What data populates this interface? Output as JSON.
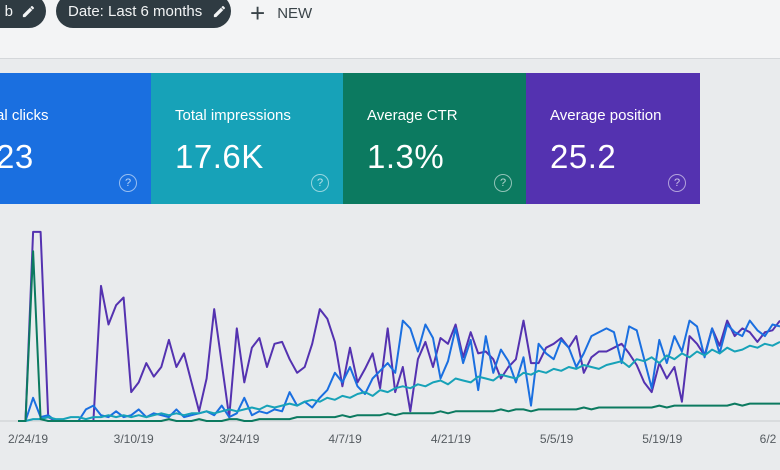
{
  "toolbar": {
    "chip_a_label": "b",
    "date_chip_label": "Date: Last 6 months",
    "new_label": "NEW",
    "plus": "+"
  },
  "cards": [
    {
      "label": "al clicks",
      "value": "23",
      "help": "?",
      "color": "#1a6fe0"
    },
    {
      "label": "Total impressions",
      "value": "17.6K",
      "help": "?",
      "color": "#17a2b8"
    },
    {
      "label": "Average CTR",
      "value": "1.3%",
      "help": "?",
      "color": "#0c7a60"
    },
    {
      "label": "Average position",
      "value": "25.2",
      "help": "?",
      "color": "#5432b0"
    }
  ],
  "chart_data": {
    "type": "line",
    "x_tick_labels": [
      "2/24/19",
      "3/10/19",
      "3/24/19",
      "4/7/19",
      "4/21/19",
      "5/5/19",
      "5/19/19",
      "6/2"
    ],
    "series": [
      {
        "color": "#5432b0",
        "values": [
          0,
          0,
          0.98,
          0.98,
          0.02,
          0,
          0,
          0,
          0,
          0,
          0,
          0.7,
          0.5,
          0.6,
          0.64,
          0.15,
          0.2,
          0.3,
          0.23,
          0.28,
          0.42,
          0.28,
          0.35,
          0.2,
          0.05,
          0.22,
          0.58,
          0.3,
          0.02,
          0.48,
          0.2,
          0.38,
          0.43,
          0.28,
          0.4,
          0.41,
          0.32,
          0.25,
          0.28,
          0.4,
          0.58,
          0.53,
          0.41,
          0.18,
          0.38,
          0.2,
          0.27,
          0.35,
          0.17,
          0.48,
          0.15,
          0.28,
          0.05,
          0.32,
          0.41,
          0.28,
          0.43,
          0.4,
          0.5,
          0.33,
          0.46,
          0.35,
          0.36,
          0.32,
          0.22,
          0.28,
          0.32,
          0.52,
          0.3,
          0.3,
          0.38,
          0.4,
          0.43,
          0.38,
          0.44,
          0.25,
          0.33,
          0.36,
          0.36,
          0.38,
          0.4,
          0.35,
          0.29,
          0.2,
          0.15,
          0.3,
          0.22,
          0.28,
          0.1,
          0.44,
          0.4,
          0.34,
          0.48,
          0.39,
          0.52,
          0.44,
          0.48,
          0.46,
          0.41,
          0.46,
          0.47,
          0.52
        ]
      },
      {
        "color": "#1a6fe0",
        "values": [
          0,
          0,
          0.12,
          0.02,
          0.03,
          0,
          0,
          0,
          0,
          0.06,
          0.08,
          0.03,
          0.02,
          0.05,
          0.02,
          0.03,
          0.06,
          0.02,
          0.04,
          0.03,
          0.02,
          0.06,
          0.02,
          0.03,
          0.04,
          0.05,
          0.03,
          0.08,
          0.02,
          0.04,
          0.12,
          0.03,
          0.05,
          0.04,
          0.06,
          0.05,
          0.15,
          0.08,
          0.1,
          0.07,
          0.12,
          0.16,
          0.25,
          0.2,
          0.28,
          0.18,
          0.14,
          0.22,
          0.26,
          0.3,
          0.25,
          0.52,
          0.48,
          0.36,
          0.5,
          0.43,
          0.22,
          0.31,
          0.48,
          0.3,
          0.42,
          0.16,
          0.44,
          0.25,
          0.37,
          0.31,
          0.2,
          0.33,
          0.08,
          0.4,
          0.35,
          0.32,
          0.42,
          0.38,
          0.28,
          0.35,
          0.44,
          0.46,
          0.48,
          0.46,
          0.3,
          0.49,
          0.47,
          0.32,
          0.17,
          0.42,
          0.3,
          0.44,
          0.36,
          0.52,
          0.49,
          0.33,
          0.48,
          0.35,
          0.5,
          0.46,
          0.44,
          0.52,
          0.47,
          0.44,
          0.5,
          0.49
        ]
      },
      {
        "color": "#17a2b8",
        "values": [
          0,
          0,
          0.01,
          0.01,
          0.02,
          0.01,
          0.01,
          0.02,
          0.02,
          0.01,
          0.02,
          0.02,
          0.03,
          0.02,
          0.03,
          0.02,
          0.03,
          0.02,
          0.03,
          0.04,
          0.03,
          0.04,
          0.03,
          0.04,
          0.04,
          0.05,
          0.04,
          0.05,
          0.06,
          0.05,
          0.06,
          0.07,
          0.06,
          0.08,
          0.07,
          0.08,
          0.09,
          0.08,
          0.1,
          0.11,
          0.1,
          0.12,
          0.11,
          0.13,
          0.12,
          0.14,
          0.15,
          0.13,
          0.16,
          0.15,
          0.17,
          0.18,
          0.17,
          0.19,
          0.18,
          0.2,
          0.21,
          0.19,
          0.22,
          0.21,
          0.2,
          0.23,
          0.22,
          0.21,
          0.24,
          0.23,
          0.22,
          0.25,
          0.24,
          0.26,
          0.25,
          0.27,
          0.26,
          0.28,
          0.27,
          0.29,
          0.28,
          0.27,
          0.29,
          0.3,
          0.31,
          0.28,
          0.32,
          0.31,
          0.33,
          0.3,
          0.34,
          0.32,
          0.35,
          0.33,
          0.36,
          0.34,
          0.37,
          0.35,
          0.38,
          0.36,
          0.37,
          0.39,
          0.38,
          0.4,
          0.39,
          0.41
        ]
      },
      {
        "color": "#0c7a60",
        "values": [
          0,
          0,
          0.88,
          0.01,
          0,
          0,
          0,
          0,
          0,
          0,
          0,
          0,
          0,
          0,
          0,
          0,
          0,
          0,
          0,
          0,
          0.01,
          0,
          0,
          0,
          0.01,
          0,
          0,
          0,
          0.01,
          0.01,
          0,
          0,
          0.01,
          0.01,
          0.01,
          0.01,
          0.01,
          0.02,
          0.02,
          0.02,
          0.02,
          0.02,
          0.02,
          0.03,
          0.02,
          0.03,
          0.03,
          0.03,
          0.03,
          0.04,
          0.03,
          0.04,
          0.04,
          0.04,
          0.04,
          0.04,
          0.05,
          0.04,
          0.05,
          0.05,
          0.05,
          0.05,
          0.05,
          0.05,
          0.06,
          0.05,
          0.06,
          0.06,
          0.05,
          0.06,
          0.06,
          0.06,
          0.06,
          0.06,
          0.06,
          0.07,
          0.06,
          0.07,
          0.07,
          0.07,
          0.07,
          0.07,
          0.07,
          0.07,
          0.07,
          0.08,
          0.07,
          0.08,
          0.08,
          0.08,
          0.08,
          0.08,
          0.08,
          0.08,
          0.08,
          0.09,
          0.08,
          0.09,
          0.09,
          0.09,
          0.09,
          0.09
        ]
      }
    ]
  }
}
